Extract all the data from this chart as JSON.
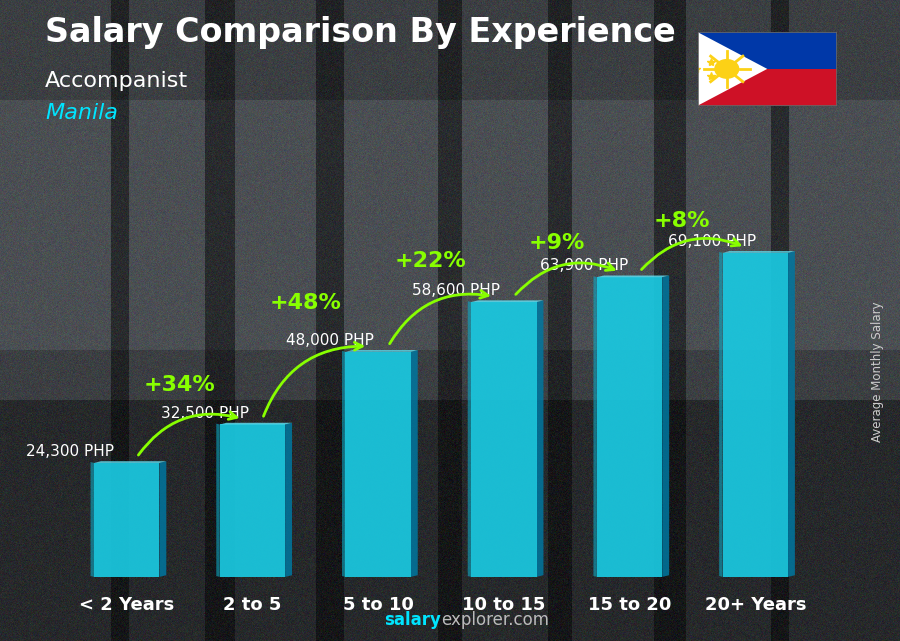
{
  "title": "Salary Comparison By Experience",
  "subtitle": "Accompanist",
  "city": "Manila",
  "ylabel": "Average Monthly Salary",
  "footer_bold": "salary",
  "footer_normal": "explorer.com",
  "categories": [
    "< 2 Years",
    "2 to 5",
    "5 to 10",
    "10 to 15",
    "15 to 20",
    "20+ Years"
  ],
  "values": [
    24300,
    32500,
    48000,
    58600,
    63900,
    69100
  ],
  "labels": [
    "24,300 PHP",
    "32,500 PHP",
    "48,000 PHP",
    "58,600 PHP",
    "63,900 PHP",
    "69,100 PHP"
  ],
  "pct_labels": [
    "+34%",
    "+48%",
    "+22%",
    "+9%",
    "+8%"
  ],
  "bar_face_color": "#1ac8e0",
  "bar_left_color": "#0ea8c4",
  "bar_top_color": "#60ddf0",
  "bar_shadow_color": "#0077a0",
  "pct_color": "#88ff00",
  "label_color": "#ffffff",
  "city_color": "#00e5ff",
  "bg_color": "#3a3a3a",
  "title_fontsize": 24,
  "subtitle_fontsize": 16,
  "city_fontsize": 16,
  "label_fontsize": 11,
  "pct_fontsize": 16,
  "xtick_fontsize": 13,
  "bar_width": 0.52,
  "ylim_max": 82000,
  "flag_blue": "#0038a8",
  "flag_red": "#ce1126",
  "flag_sun": "#fcd116",
  "label_x_offsets": [
    -0.45,
    -0.38,
    -0.38,
    -0.38,
    -0.36,
    -0.34
  ],
  "label_y_offsets": [
    800,
    800,
    800,
    800,
    800,
    800
  ],
  "pct_arc_rads": [
    -0.35,
    -0.35,
    -0.35,
    -0.35,
    -0.35
  ],
  "pct_x_offsets": [
    -0.08,
    -0.08,
    -0.08,
    -0.08,
    -0.08
  ],
  "pct_y_extra": [
    5000,
    7000,
    5500,
    4000,
    3500
  ]
}
